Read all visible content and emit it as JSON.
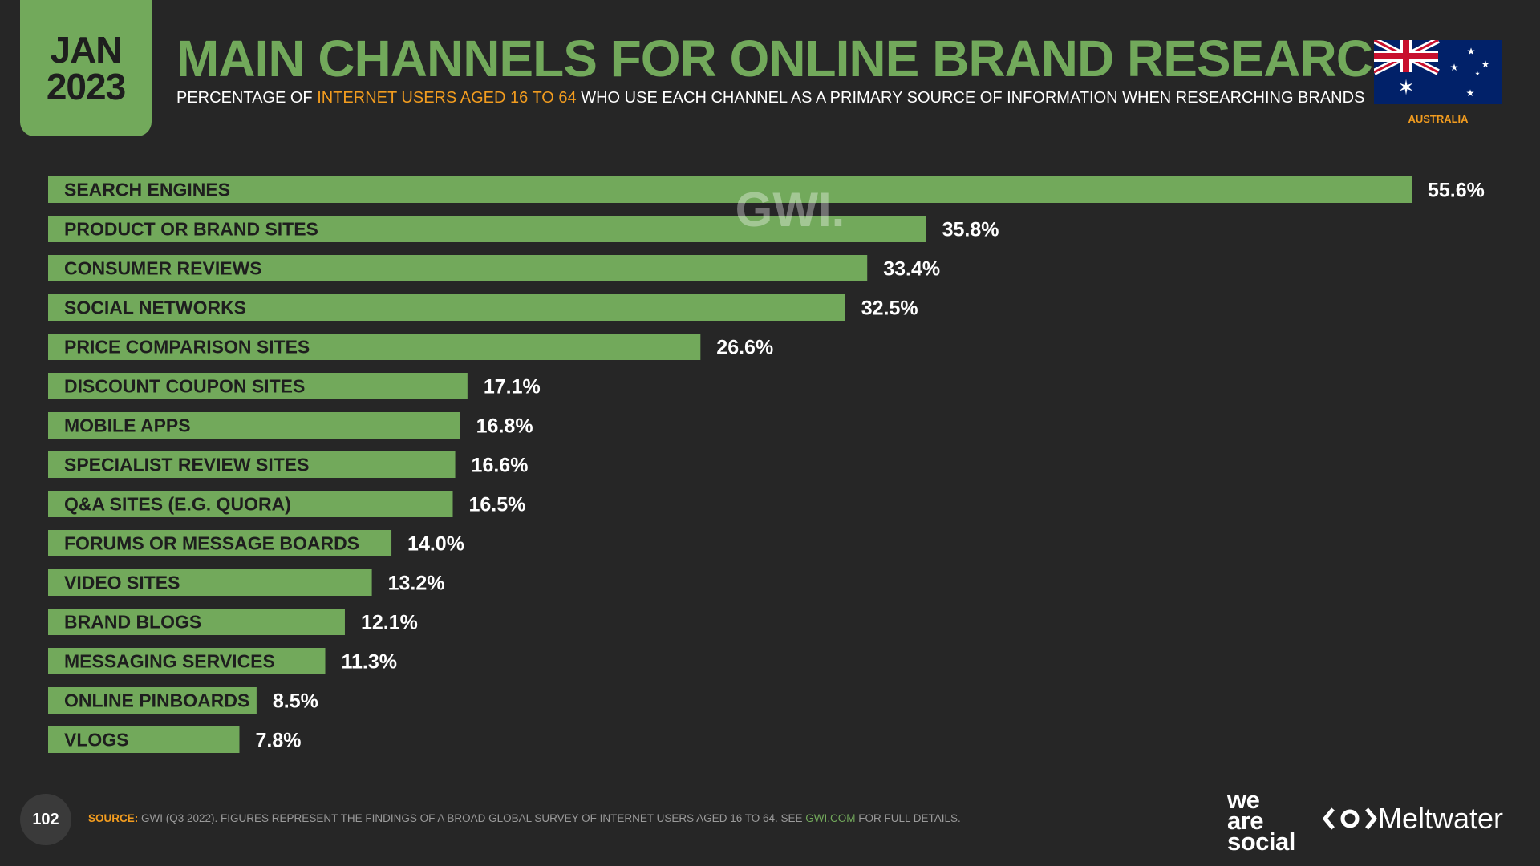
{
  "header": {
    "month": "JAN",
    "year": "2023",
    "title": "MAIN CHANNELS FOR ONLINE BRAND RESEARCH",
    "subtitle_pre": "PERCENTAGE OF ",
    "subtitle_highlight": "INTERNET USERS AGED 16 TO 64",
    "subtitle_post": " WHO USE EACH CHANNEL AS A PRIMARY SOURCE OF INFORMATION WHEN RESEARCHING BRANDS",
    "country": "AUSTRALIA"
  },
  "watermark": "GWI.",
  "footer": {
    "page_number": "102",
    "source_label": "SOURCE:",
    "source_text": " GWI (Q3 2022). FIGURES REPRESENT THE FINDINGS OF A BROAD GLOBAL SURVEY OF INTERNET USERS AGED 16 TO 64. SEE ",
    "source_link": "GWI.COM",
    "source_end": " FOR FULL DETAILS.",
    "logo_was": [
      "we",
      "are",
      "social"
    ],
    "logo_mw": "Meltwater"
  },
  "colors": {
    "background": "#262626",
    "bar": "#72a95b",
    "accent": "#f29c1f",
    "label_text": "#1e1e1e",
    "value_text": "#ffffff"
  },
  "chart_data": {
    "type": "bar",
    "orientation": "horizontal",
    "categories": [
      "SEARCH ENGINES",
      "PRODUCT OR BRAND SITES",
      "CONSUMER REVIEWS",
      "SOCIAL NETWORKS",
      "PRICE COMPARISON SITES",
      "DISCOUNT COUPON SITES",
      "MOBILE APPS",
      "SPECIALIST REVIEW SITES",
      "Q&A SITES (E.G. QUORA)",
      "FORUMS OR MESSAGE BOARDS",
      "VIDEO SITES",
      "BRAND BLOGS",
      "MESSAGING SERVICES",
      "ONLINE PINBOARDS",
      "VLOGS"
    ],
    "values": [
      55.6,
      35.8,
      33.4,
      32.5,
      26.6,
      17.1,
      16.8,
      16.6,
      16.5,
      14.0,
      13.2,
      12.1,
      11.3,
      8.5,
      7.8
    ],
    "value_labels": [
      "55.6%",
      "35.8%",
      "33.4%",
      "32.5%",
      "26.6%",
      "17.1%",
      "16.8%",
      "16.6%",
      "16.5%",
      "14.0%",
      "13.2%",
      "12.1%",
      "11.3%",
      "8.5%",
      "7.8%"
    ],
    "xlim": [
      0,
      55.6
    ],
    "grid": false,
    "legend": "none"
  }
}
